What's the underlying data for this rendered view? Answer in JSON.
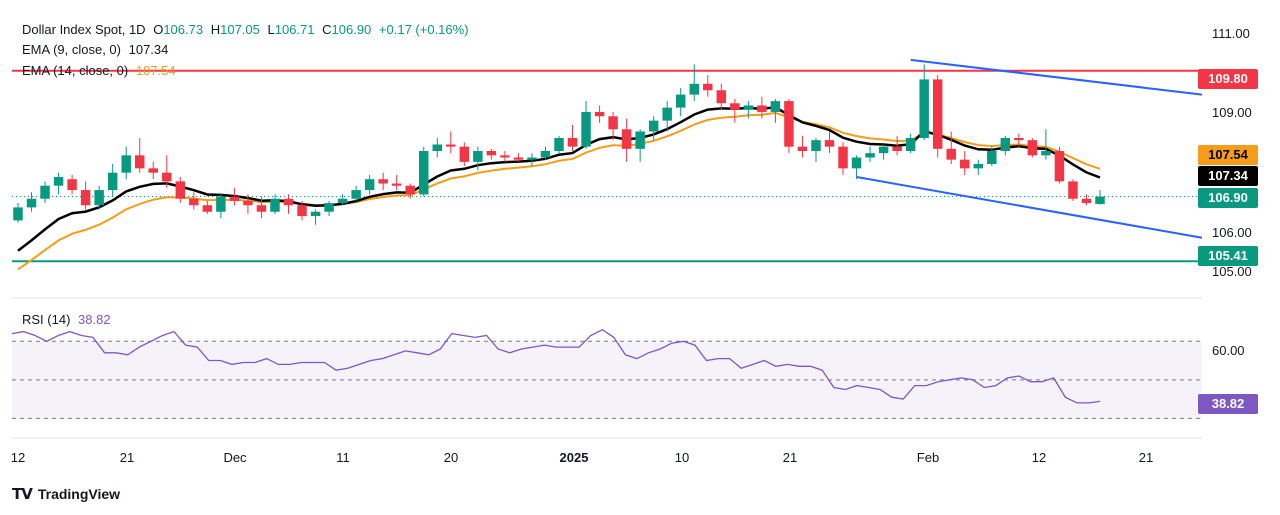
{
  "header": {
    "symbol": "Dollar Index Spot, 1D",
    "open_label": "O",
    "open": "106.73",
    "high_label": "H",
    "high": "107.05",
    "low_label": "L",
    "low": "106.71",
    "close_label": "C",
    "close": "106.90",
    "change": "+0.17 (+0.16%)"
  },
  "ema9": {
    "label": "EMA (9, close, 0)",
    "value": "107.34"
  },
  "ema14": {
    "label": "EMA (14, close, 0)",
    "value": "107.54"
  },
  "rsi_legend": {
    "label": "RSI (14)",
    "value": "38.82"
  },
  "brand": "TradingView",
  "price_axis": [
    "111.00",
    "109.00",
    "106.00",
    "105.00"
  ],
  "rsi_axis": [
    "60.00"
  ],
  "tags": {
    "resistance": "109.80",
    "ema14": "107.54",
    "ema9": "107.34",
    "last": "106.90",
    "support": "105.41",
    "rsi": "38.82"
  },
  "time_axis": [
    "12",
    "21",
    "Dec",
    "11",
    "20",
    "2025",
    "10",
    "21",
    "Feb",
    "12",
    "21"
  ],
  "colors": {
    "up": "#089981",
    "down": "#f23645",
    "ema9": "#000000",
    "ema14": "#f59c1a",
    "channel": "#2962ff",
    "resistance": "#f23645",
    "support": "#089981",
    "rsi": "#7e57c2"
  },
  "chart_data": {
    "type": "candlestick",
    "price_range": [
      104.7,
      111.2
    ],
    "horizontal_levels": {
      "resistance": 109.8,
      "support": 105.41
    },
    "channel": {
      "upper": [
        [
          66,
          110.05
        ],
        [
          196,
          109.25
        ]
      ],
      "lower": [
        [
          62,
          107.35
        ],
        [
          196,
          105.95
        ]
      ]
    },
    "candles": [
      [
        106.35,
        106.75,
        106.3,
        106.65
      ],
      [
        106.65,
        107.0,
        106.55,
        106.85
      ],
      [
        106.85,
        107.25,
        106.75,
        107.15
      ],
      [
        107.15,
        107.45,
        106.95,
        107.35
      ],
      [
        107.3,
        107.4,
        106.95,
        107.05
      ],
      [
        107.05,
        107.25,
        106.6,
        106.7
      ],
      [
        106.7,
        107.15,
        106.6,
        107.05
      ],
      [
        107.05,
        107.65,
        106.9,
        107.45
      ],
      [
        107.45,
        108.05,
        107.3,
        107.85
      ],
      [
        107.85,
        108.25,
        107.45,
        107.55
      ],
      [
        107.55,
        107.7,
        107.3,
        107.45
      ],
      [
        107.45,
        107.85,
        107.1,
        107.25
      ],
      [
        107.25,
        107.35,
        106.75,
        106.85
      ],
      [
        106.85,
        107.0,
        106.6,
        106.7
      ],
      [
        106.7,
        106.8,
        106.5,
        106.55
      ],
      [
        106.55,
        106.95,
        106.4,
        106.9
      ],
      [
        106.9,
        107.1,
        106.7,
        106.8
      ],
      [
        106.8,
        106.95,
        106.5,
        106.7
      ],
      [
        106.7,
        106.9,
        106.4,
        106.55
      ],
      [
        106.55,
        106.95,
        106.5,
        106.85
      ],
      [
        106.85,
        106.95,
        106.5,
        106.7
      ],
      [
        106.7,
        106.8,
        106.35,
        106.45
      ],
      [
        106.45,
        106.6,
        106.25,
        106.55
      ],
      [
        106.55,
        106.8,
        106.45,
        106.75
      ],
      [
        106.75,
        106.95,
        106.7,
        106.85
      ],
      [
        106.85,
        107.15,
        106.8,
        107.05
      ],
      [
        107.05,
        107.4,
        106.95,
        107.3
      ],
      [
        107.3,
        107.45,
        107.05,
        107.2
      ],
      [
        107.2,
        107.4,
        107.05,
        107.15
      ],
      [
        107.15,
        107.2,
        106.85,
        106.95
      ],
      [
        106.95,
        108.05,
        106.9,
        107.95
      ],
      [
        107.95,
        108.25,
        107.8,
        108.1
      ],
      [
        108.1,
        108.4,
        107.9,
        108.05
      ],
      [
        108.05,
        108.15,
        107.6,
        107.7
      ],
      [
        107.7,
        108.05,
        107.5,
        107.95
      ],
      [
        107.95,
        108.0,
        107.75,
        107.85
      ],
      [
        107.85,
        107.95,
        107.7,
        107.8
      ],
      [
        107.8,
        107.9,
        107.7,
        107.75
      ],
      [
        107.75,
        107.9,
        107.6,
        107.8
      ],
      [
        107.8,
        108.05,
        107.75,
        107.95
      ],
      [
        107.95,
        108.3,
        107.9,
        108.25
      ],
      [
        108.25,
        108.55,
        107.95,
        108.05
      ],
      [
        108.05,
        109.1,
        108.0,
        108.85
      ],
      [
        108.85,
        109.0,
        108.6,
        108.75
      ],
      [
        108.75,
        108.85,
        108.2,
        108.45
      ],
      [
        108.45,
        108.7,
        107.7,
        108.0
      ],
      [
        108.0,
        108.45,
        107.7,
        108.4
      ],
      [
        108.4,
        108.75,
        108.2,
        108.65
      ],
      [
        108.65,
        109.1,
        108.4,
        108.95
      ],
      [
        108.95,
        109.4,
        108.75,
        109.25
      ],
      [
        109.25,
        109.95,
        109.1,
        109.5
      ],
      [
        109.5,
        109.7,
        109.2,
        109.35
      ],
      [
        109.35,
        109.5,
        108.9,
        109.05
      ],
      [
        109.05,
        109.15,
        108.6,
        108.9
      ],
      [
        108.9,
        109.1,
        108.7,
        109.0
      ],
      [
        109.0,
        109.2,
        108.7,
        108.85
      ],
      [
        108.85,
        109.15,
        108.6,
        109.1
      ],
      [
        109.1,
        109.15,
        107.9,
        108.05
      ],
      [
        108.05,
        108.3,
        107.8,
        107.95
      ],
      [
        107.95,
        108.25,
        107.7,
        108.2
      ],
      [
        108.2,
        108.4,
        107.9,
        108.05
      ],
      [
        108.05,
        108.15,
        107.4,
        107.55
      ],
      [
        107.55,
        107.85,
        107.3,
        107.8
      ],
      [
        107.8,
        108.05,
        107.7,
        107.9
      ],
      [
        107.9,
        108.1,
        107.75,
        108.05
      ],
      [
        108.05,
        108.3,
        107.85,
        107.95
      ],
      [
        107.95,
        108.35,
        107.9,
        108.25
      ],
      [
        108.25,
        109.95,
        108.2,
        109.6
      ],
      [
        109.6,
        109.7,
        107.8,
        108.0
      ],
      [
        108.0,
        108.4,
        107.65,
        107.75
      ],
      [
        107.75,
        107.95,
        107.4,
        107.55
      ],
      [
        107.55,
        107.75,
        107.4,
        107.65
      ],
      [
        107.65,
        108.05,
        107.6,
        107.95
      ],
      [
        107.95,
        108.3,
        107.85,
        108.25
      ],
      [
        108.25,
        108.35,
        108.05,
        108.2
      ],
      [
        108.2,
        108.25,
        107.8,
        107.85
      ],
      [
        107.85,
        108.45,
        107.75,
        107.95
      ],
      [
        107.95,
        108.05,
        107.2,
        107.25
      ],
      [
        107.25,
        107.3,
        106.8,
        106.85
      ],
      [
        106.85,
        106.95,
        106.7,
        106.75
      ],
      [
        106.73,
        107.05,
        106.71,
        106.9
      ]
    ],
    "ema9_last": 107.34,
    "ema14_last": 107.54,
    "rsi": {
      "range": [
        25,
        80
      ],
      "levels": [
        70,
        50,
        30
      ],
      "last": 38.82,
      "values": [
        74,
        75,
        73,
        70,
        73,
        75,
        73,
        72,
        64,
        64,
        63,
        67,
        70,
        73,
        75,
        68,
        67,
        60,
        60,
        58,
        59,
        59,
        61,
        58,
        58,
        59,
        59,
        59,
        55,
        56,
        58,
        60,
        61,
        63,
        65,
        64,
        63,
        66,
        74,
        73,
        72,
        73,
        66,
        64,
        66,
        67,
        68,
        67,
        67,
        67,
        73,
        76,
        72,
        63,
        61,
        64,
        66,
        69,
        70,
        68,
        60,
        61,
        61,
        56,
        58,
        60,
        57,
        58,
        57,
        57,
        55,
        46,
        45,
        47,
        46,
        45,
        41,
        40,
        47,
        47,
        49,
        50,
        51,
        50,
        46,
        47,
        51,
        52,
        49,
        49,
        51,
        41,
        38,
        38,
        38.82
      ]
    }
  }
}
